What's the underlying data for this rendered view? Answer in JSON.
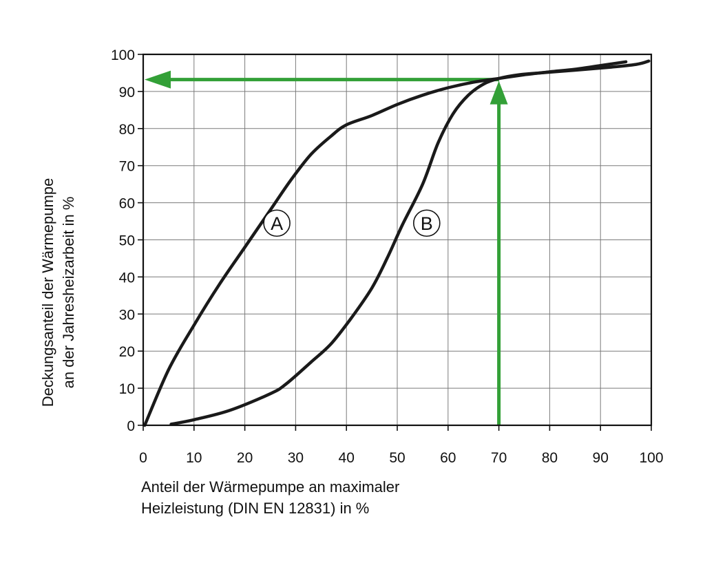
{
  "chart_data": {
    "type": "line",
    "title": "",
    "xlabel": [
      "Anteil der Wärmepumpe an maximaler",
      "Heizleistung (DIN EN 12831) in %"
    ],
    "ylabel": [
      "Deckungsanteil der Wärmepumpe",
      "an der Jahresheizarbeit in %"
    ],
    "xlim": [
      0,
      100
    ],
    "ylim": [
      0,
      100
    ],
    "xticks": [
      "0",
      "10",
      "20",
      "30",
      "40",
      "50",
      "60",
      "70",
      "80",
      "90",
      "100"
    ],
    "yticks": [
      "0",
      "10",
      "20",
      "30",
      "40",
      "50",
      "60",
      "70",
      "80",
      "90",
      "100"
    ],
    "grid": true,
    "legend": "none",
    "series": [
      {
        "name": "A",
        "color": "#1a1a1a",
        "x": [
          0.3,
          5,
          10,
          15,
          20,
          25,
          29,
          33,
          37,
          40,
          45,
          50,
          55,
          60,
          65,
          70,
          75,
          80,
          85,
          90,
          95
        ],
        "y": [
          0,
          15,
          27,
          38,
          48,
          58,
          66,
          73,
          78,
          81,
          83.5,
          86.5,
          89,
          91,
          92.5,
          93.5,
          94.5,
          95.3,
          96,
          97,
          98
        ]
      },
      {
        "name": "B",
        "color": "#1a1a1a",
        "x": [
          5.5,
          10,
          17,
          25,
          28,
          33,
          37,
          41,
          45,
          48,
          51,
          55,
          58,
          61,
          64,
          67,
          70,
          74,
          80,
          90,
          97,
          99.5
        ],
        "y": [
          0.3,
          1.5,
          4,
          8.5,
          11,
          17,
          22,
          29,
          37,
          45,
          54,
          65,
          76,
          84,
          89,
          92,
          93.5,
          94.5,
          95.2,
          96.3,
          97.3,
          98.2
        ]
      }
    ],
    "annotations": [
      {
        "label": "A",
        "x": 26.3,
        "y": 54.5
      },
      {
        "label": "B",
        "x": 55.8,
        "y": 54.5
      }
    ],
    "reference_lines": [
      {
        "type": "vertical",
        "x": 70,
        "y_from": 0,
        "y_to": 93.2,
        "arrow": "up",
        "color": "#33a037"
      },
      {
        "type": "horizontal",
        "y": 93.2,
        "x_from": 70,
        "x_to": 0,
        "arrow": "left",
        "color": "#33a037"
      }
    ]
  }
}
